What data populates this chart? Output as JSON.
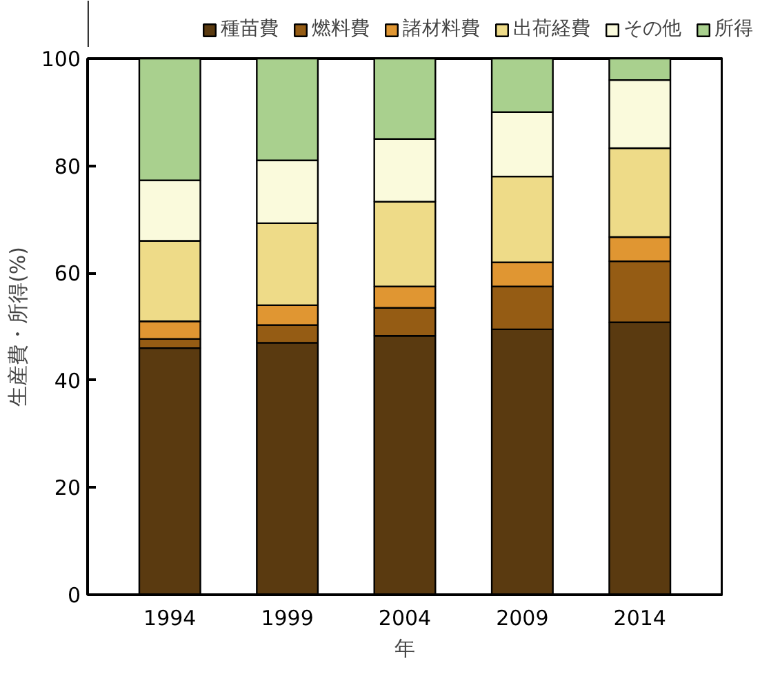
{
  "chart_data": {
    "type": "bar",
    "stacked": true,
    "categories": [
      "1994",
      "1999",
      "2004",
      "2009",
      "2014"
    ],
    "xlabel": "年",
    "ylabel": "生産費・所得(%)",
    "ylim": [
      0,
      100
    ],
    "yticks": [
      0,
      20,
      40,
      60,
      80,
      100
    ],
    "grid": false,
    "legend": "top",
    "series": [
      {
        "name": "種苗費",
        "color": "#5a3a10",
        "values": [
          46,
          47,
          48.3,
          49.5,
          50.8
        ]
      },
      {
        "name": "燃料費",
        "color": "#955c14",
        "values": [
          1.7,
          3.3,
          5.2,
          8,
          11.4
        ]
      },
      {
        "name": "諸材料費",
        "color": "#e09632",
        "values": [
          3.3,
          3.7,
          4,
          4.5,
          4.5
        ]
      },
      {
        "name": "出荷経費",
        "color": "#eedb88",
        "values": [
          15,
          15.3,
          15.8,
          16,
          16.6
        ]
      },
      {
        "name": "その他",
        "color": "#fafadc",
        "values": [
          11.3,
          11.7,
          11.7,
          12,
          12.7
        ]
      },
      {
        "name": "所得",
        "color": "#a9d08e",
        "values": [
          22.7,
          19,
          15,
          10,
          4
        ]
      }
    ]
  }
}
